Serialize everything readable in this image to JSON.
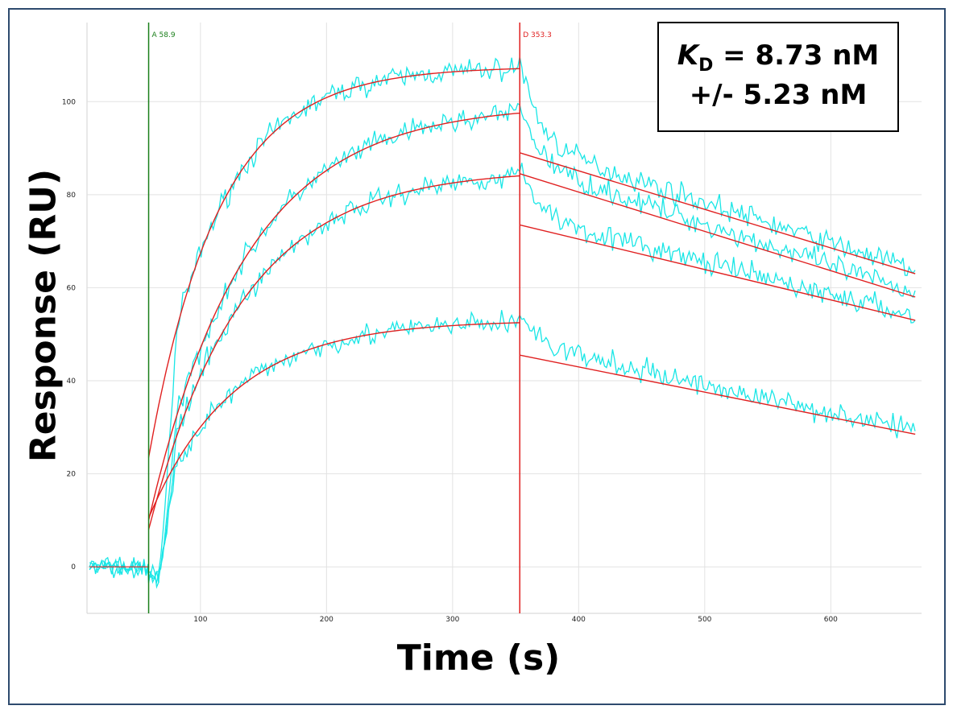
{
  "chart_data": {
    "type": "line",
    "title": "",
    "xlabel": "Time (s)",
    "ylabel": "Response (RU)",
    "xlim": [
      10,
      672
    ],
    "ylim": [
      -10,
      117
    ],
    "x_ticks": [
      100,
      200,
      300,
      400,
      500,
      600
    ],
    "y_ticks": [
      0,
      20,
      40,
      60,
      80,
      100
    ],
    "grid": true,
    "markers": [
      {
        "label": "A 58.9",
        "x": 58.9,
        "color": "#1a7f1a"
      },
      {
        "label": "D 353.3",
        "x": 353.3,
        "color": "#e02020"
      }
    ],
    "annotation": {
      "k_symbol": "K",
      "k_subscript": "D",
      "kd_value": " = 8.73 nM",
      "kd_error": "+/- 5.23 nM"
    },
    "colors": {
      "data": "#19e6e6",
      "fit": "#e02020",
      "grid": "#e2e2e2"
    },
    "fit_model": {
      "association_start": 58.9,
      "dissociation_start": 353.3,
      "end": 667,
      "series": [
        {
          "start": 23.5,
          "plateau": 107.5,
          "k_obs": 0.018,
          "diss_start": 89.0,
          "diss_end": 63.0
        },
        {
          "start": 10.0,
          "plateau": 99.5,
          "k_obs": 0.013,
          "diss_start": 84.5,
          "diss_end": 58.0
        },
        {
          "start": 8.0,
          "plateau": 85.5,
          "k_obs": 0.0135,
          "diss_start": 73.5,
          "diss_end": 53.0
        },
        {
          "start": 10.5,
          "plateau": 53.0,
          "k_obs": 0.015,
          "diss_start": 45.5,
          "diss_end": 28.5
        }
      ]
    }
  }
}
